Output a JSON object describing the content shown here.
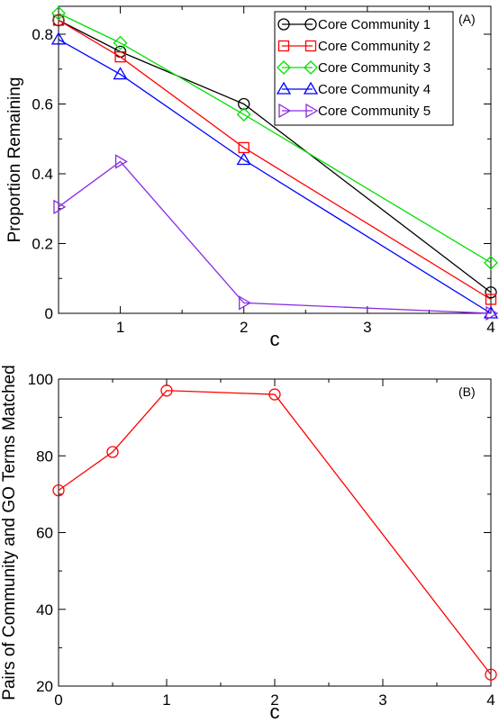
{
  "chart_data": [
    {
      "type": "line",
      "panel_label": "(A)",
      "xlabel": "c",
      "ylabel": "Proportion Remaining",
      "xlim": [
        0.5,
        4
      ],
      "ylim": [
        0,
        0.88
      ],
      "xticks": [
        1,
        2,
        3,
        4
      ],
      "yticks": [
        0,
        0.2,
        0.4,
        0.6,
        0.8
      ],
      "tick_labels_x": [
        "1",
        "2",
        "3",
        "4"
      ],
      "tick_labels_y": [
        "0",
        "0.2",
        "0.4",
        "0.6",
        "0.8"
      ],
      "legend_position": "top-right",
      "grid": false,
      "x": [
        0.5,
        1,
        2,
        4
      ],
      "series": [
        {
          "name": "Core Community 1",
          "color": "#000000",
          "marker": "circle",
          "values": [
            0.84,
            0.75,
            0.6,
            0.06
          ]
        },
        {
          "name": "Core Community 2",
          "color": "#ff0000",
          "marker": "square",
          "values": [
            0.84,
            0.735,
            0.475,
            0.04
          ]
        },
        {
          "name": "Core Community 3",
          "color": "#00e000",
          "marker": "diamond",
          "values": [
            0.86,
            0.775,
            0.57,
            0.145
          ]
        },
        {
          "name": "Core Community 4",
          "color": "#0000ff",
          "marker": "triangle-up",
          "values": [
            0.785,
            0.685,
            0.44,
            0.0
          ]
        },
        {
          "name": "Core Community 5",
          "color": "#8a2be2",
          "marker": "triangle-right",
          "values": [
            0.305,
            0.435,
            0.03,
            0.0
          ]
        }
      ]
    },
    {
      "type": "line",
      "panel_label": "(B)",
      "xlabel": "c",
      "ylabel": "Pairs of Community and GO Terms Matched",
      "xlim": [
        0,
        4
      ],
      "ylim": [
        20,
        100
      ],
      "xticks": [
        0,
        1,
        2,
        3,
        4
      ],
      "yticks": [
        20,
        40,
        60,
        80,
        100
      ],
      "tick_labels_x": [
        "0",
        "1",
        "2",
        "3",
        "4"
      ],
      "tick_labels_y": [
        "20",
        "40",
        "60",
        "80",
        "100"
      ],
      "grid": false,
      "x": [
        0,
        0.5,
        1,
        2,
        4
      ],
      "series": [
        {
          "color": "#ff0000",
          "marker": "circle",
          "values": [
            71,
            81,
            97,
            96,
            23
          ]
        }
      ]
    }
  ]
}
